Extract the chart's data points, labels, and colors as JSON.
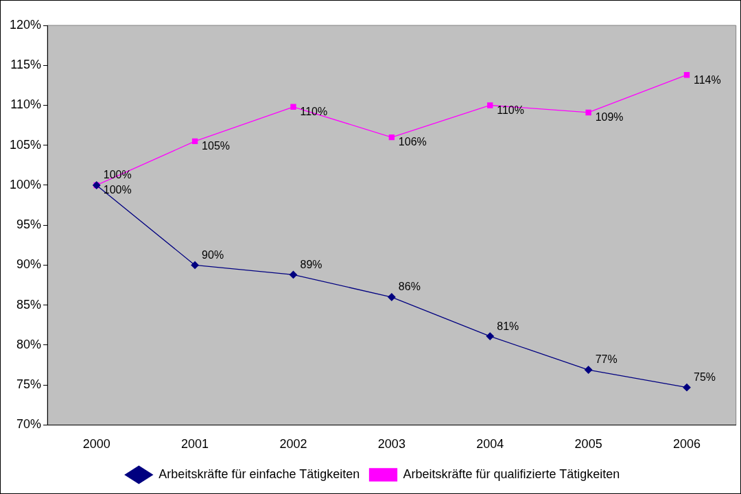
{
  "chart_data": {
    "type": "line",
    "categories": [
      "2000",
      "2001",
      "2002",
      "2003",
      "2004",
      "2005",
      "2006"
    ],
    "series": [
      {
        "name": "Arbeitskräfte für einfache Tätigkeiten",
        "color": "#000080",
        "marker": "diamond",
        "values": [
          100,
          90,
          88.8,
          86,
          81.1,
          76.9,
          74.7
        ],
        "value_labels": [
          "100%",
          "90%",
          "89%",
          "86%",
          "81%",
          "77%",
          "75%"
        ]
      },
      {
        "name": "Arbeitskräfte für qualifizierte Tätigkeiten",
        "color": "#ff00ff",
        "marker": "square",
        "values": [
          100,
          105.5,
          109.8,
          106,
          110,
          109.1,
          113.8
        ],
        "value_labels": [
          "100%",
          "105%",
          "110%",
          "106%",
          "110%",
          "109%",
          "114%"
        ]
      }
    ],
    "ylim": [
      70,
      120
    ],
    "yticks": [
      {
        "value": 70,
        "label": "70%"
      },
      {
        "value": 75,
        "label": "75%"
      },
      {
        "value": 80,
        "label": "80%"
      },
      {
        "value": 85,
        "label": "85%"
      },
      {
        "value": 90,
        "label": "90%"
      },
      {
        "value": 95,
        "label": "95%"
      },
      {
        "value": 100,
        "label": "100%"
      },
      {
        "value": 105,
        "label": "105%"
      },
      {
        "value": 110,
        "label": "110%"
      },
      {
        "value": 115,
        "label": "115%"
      },
      {
        "value": 120,
        "label": "120%"
      }
    ],
    "grid": false,
    "legend": "bottom",
    "line_style": "solid"
  }
}
